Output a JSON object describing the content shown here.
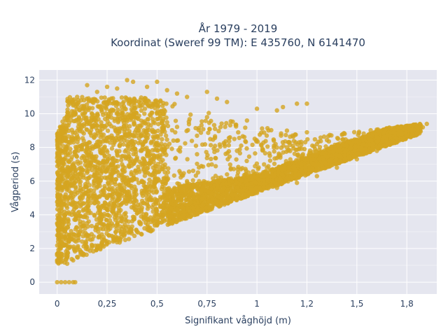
{
  "chart_data": {
    "type": "scatter",
    "title_lines": [
      "År 1979 - 2019",
      "Koordinat (Sweref 99 TM): E 435760, N 6141470"
    ],
    "xlabel": "Signifikant våghöjd (m)",
    "ylabel": "Vågperiod (s)",
    "xlim": [
      -0.09,
      1.9
    ],
    "ylim": [
      -0.7,
      12.6
    ],
    "xticks": [
      0,
      0.25,
      0.5,
      0.75,
      1,
      1.25,
      1.5,
      1.75
    ],
    "xtick_labels": [
      "0",
      "0,25",
      "0,5",
      "0,75",
      "1",
      "1,2",
      "1,5",
      "1,8"
    ],
    "yticks": [
      0,
      2,
      4,
      6,
      8,
      10,
      12
    ],
    "ytick_labels": [
      "0",
      "2",
      "4",
      "6",
      "8",
      "10",
      "12"
    ],
    "grid": true,
    "marker_color": "#d4a520",
    "plot_bgcolor": "#e5e6ef",
    "series": [
      {
        "values_note_x": "Hs (m)",
        "points": [
          [
            0.0,
            0.0
          ],
          [
            0.02,
            0.0
          ],
          [
            0.04,
            0.0
          ],
          [
            0.06,
            0.0
          ],
          [
            0.08,
            0.0
          ],
          [
            0.09,
            0.0
          ],
          [
            0.0,
            1.6
          ],
          [
            0.02,
            1.2
          ],
          [
            0.05,
            1.1
          ],
          [
            0.08,
            1.3
          ],
          [
            0.1,
            1.5
          ],
          [
            0.12,
            1.8
          ],
          [
            0.0,
            3.5
          ],
          [
            0.01,
            5.6
          ],
          [
            0.02,
            7.8
          ],
          [
            0.01,
            8.5
          ],
          [
            0.03,
            9.0
          ],
          [
            0.05,
            9.8
          ],
          [
            0.08,
            10.5
          ],
          [
            0.1,
            11.0
          ],
          [
            0.15,
            11.7
          ],
          [
            0.2,
            11.3
          ],
          [
            0.25,
            11.6
          ],
          [
            0.3,
            11.5
          ],
          [
            0.35,
            12.0
          ],
          [
            0.38,
            11.9
          ],
          [
            0.45,
            11.6
          ],
          [
            0.5,
            11.9
          ],
          [
            0.55,
            11.4
          ],
          [
            0.6,
            11.2
          ],
          [
            0.65,
            11.0
          ],
          [
            0.75,
            11.3
          ],
          [
            0.8,
            10.9
          ],
          [
            0.85,
            10.7
          ],
          [
            1.0,
            10.3
          ],
          [
            1.1,
            10.2
          ],
          [
            1.13,
            10.4
          ],
          [
            1.2,
            10.6
          ],
          [
            1.25,
            10.6
          ],
          [
            0.2,
            2.0
          ],
          [
            0.3,
            2.5
          ],
          [
            0.4,
            3.0
          ],
          [
            0.5,
            3.4
          ],
          [
            0.6,
            3.9
          ],
          [
            0.7,
            4.3
          ],
          [
            0.8,
            4.6
          ],
          [
            0.9,
            5.0
          ],
          [
            1.0,
            5.3
          ],
          [
            1.1,
            5.6
          ],
          [
            1.2,
            5.9
          ],
          [
            1.3,
            6.3
          ],
          [
            1.4,
            6.8
          ],
          [
            1.5,
            7.3
          ],
          [
            1.6,
            7.8
          ],
          [
            1.7,
            8.3
          ],
          [
            1.8,
            8.8
          ],
          [
            1.83,
            9.2
          ],
          [
            1.85,
            9.4
          ],
          [
            0.15,
            6.5
          ],
          [
            0.3,
            7.2
          ],
          [
            0.5,
            7.5
          ],
          [
            0.7,
            7.6
          ],
          [
            0.9,
            7.8
          ],
          [
            1.1,
            8.0
          ],
          [
            1.3,
            8.2
          ],
          [
            1.5,
            8.4
          ],
          [
            1.6,
            8.6
          ],
          [
            0.25,
            5.0
          ],
          [
            0.45,
            5.5
          ],
          [
            0.65,
            6.0
          ],
          [
            0.85,
            6.4
          ],
          [
            1.05,
            6.8
          ],
          [
            0.35,
            8.8
          ],
          [
            0.55,
            9.5
          ],
          [
            0.75,
            9.8
          ],
          [
            0.95,
            9.6
          ],
          [
            1.15,
            9.0
          ],
          [
            1.25,
            8.9
          ]
        ]
      }
    ]
  }
}
